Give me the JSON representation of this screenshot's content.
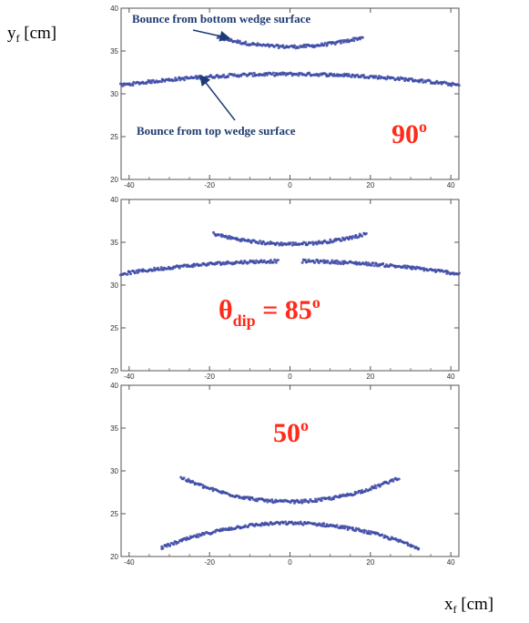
{
  "figure": {
    "y_axis_label": {
      "main": "y",
      "sub": "f",
      "unit": " [cm]"
    },
    "x_axis_label": {
      "main": "x",
      "sub": "f",
      "unit": " [cm]"
    },
    "colors": {
      "points": "#3d4aa6",
      "angle_text": "#ff2a1a",
      "annotation_text": "#1f3b73",
      "frame": "#555555"
    }
  },
  "chart_data": [
    {
      "type": "scatter",
      "xlim": [
        -42,
        42
      ],
      "ylim": [
        20,
        40
      ],
      "xticks": [
        -40,
        -20,
        0,
        20,
        40
      ],
      "yticks": [
        20,
        25,
        30,
        35,
        40
      ],
      "angle_label": {
        "main": "90",
        "sub": "",
        "tail": "",
        "sup": "o"
      },
      "annotations": [
        {
          "text": "Bounce from bottom wedge surface",
          "points_to": "upper arc"
        },
        {
          "text": "Bounce from top wedge surface",
          "points_to": "lower arc"
        }
      ],
      "series": [
        {
          "shape": "arc",
          "x_range": [
            -18,
            18
          ],
          "y_center": 35.5,
          "y_edge": 36.6
        },
        {
          "shape": "arc",
          "x_range": [
            -42,
            42
          ],
          "y_center": 32.3,
          "y_edge": 31.0
        }
      ]
    },
    {
      "type": "scatter",
      "xlim": [
        -42,
        42
      ],
      "ylim": [
        20,
        40
      ],
      "xticks": [
        -40,
        -20,
        0,
        20,
        40
      ],
      "yticks": [
        20,
        25,
        30,
        35,
        40
      ],
      "angle_label": {
        "main": "θ",
        "sub": "dip",
        "tail": " = 85",
        "sup": "o"
      },
      "annotations": [],
      "series": [
        {
          "shape": "arc",
          "x_range": [
            -19,
            19
          ],
          "y_center": 34.8,
          "y_edge": 36.0
        },
        {
          "shape": "arc",
          "x_range": [
            -42,
            -3
          ],
          "y_center": 32.8,
          "y_edge": 31.3
        },
        {
          "shape": "arc",
          "x_range": [
            3,
            42
          ],
          "y_center": 32.8,
          "y_edge": 31.3
        }
      ]
    },
    {
      "type": "scatter",
      "xlim": [
        -42,
        42
      ],
      "ylim": [
        20,
        40
      ],
      "xticks": [
        -40,
        -20,
        0,
        20,
        40
      ],
      "yticks": [
        20,
        25,
        30,
        35,
        40
      ],
      "angle_label": {
        "main": "50",
        "sub": "",
        "tail": "",
        "sup": "o"
      },
      "annotations": [],
      "series": [
        {
          "shape": "arc",
          "x_range": [
            -27,
            27
          ],
          "y_center": 26.4,
          "y_edge": 29.2
        },
        {
          "shape": "arc",
          "x_range": [
            -32,
            32
          ],
          "y_center": 23.9,
          "y_edge": 21.0
        }
      ]
    }
  ]
}
